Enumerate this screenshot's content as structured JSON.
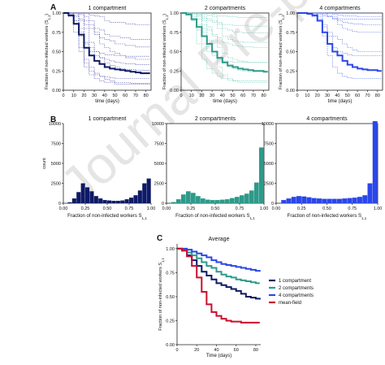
{
  "panel_letters": [
    "A",
    "B",
    "C"
  ],
  "colors": {
    "c1": "#0d1a66",
    "c2": "#2e9a8a",
    "c4": "#2a47e8",
    "mf": "#c8102e",
    "c1_light": "#3a3aa8",
    "c2_light": "#4fc1aa",
    "c4_light": "#3a56f0"
  },
  "watermark": "Journal Pre-proofs",
  "chart_data": [
    {
      "id": "A1",
      "type": "line",
      "title": "1 compartment",
      "xlabel": "time (days)",
      "ylabel": "Fraction of non-infected workers (S1,1)",
      "xlim": [
        0,
        85
      ],
      "ylim": [
        0,
        1
      ],
      "xticks": [
        "0",
        "10",
        "20",
        "30",
        "40",
        "50",
        "60",
        "70",
        "80"
      ],
      "yticks": [
        "0.00",
        "0.25",
        "0.50",
        "0.75",
        "1.00"
      ],
      "color_key": "c1",
      "mean": {
        "x": [
          0,
          5,
          10,
          15,
          20,
          25,
          30,
          35,
          40,
          45,
          50,
          55,
          60,
          65,
          70,
          75,
          80,
          84
        ],
        "y": [
          1.0,
          0.97,
          0.86,
          0.72,
          0.55,
          0.45,
          0.38,
          0.34,
          0.3,
          0.28,
          0.27,
          0.26,
          0.25,
          0.24,
          0.23,
          0.22,
          0.22,
          0.22
        ]
      },
      "runs": [
        [
          1,
          1,
          0.95,
          0.7,
          0.4,
          0.3,
          0.22,
          0.18,
          0.14,
          0.12,
          0.1,
          0.1,
          0.1,
          0.09,
          0.09,
          0.09,
          0.09,
          0.09
        ],
        [
          1,
          1,
          1,
          1,
          0.9,
          0.85,
          0.8,
          0.78,
          0.72,
          0.7,
          0.7,
          0.68,
          0.68,
          0.66,
          0.66,
          0.66,
          0.66,
          0.66
        ],
        [
          1,
          0.95,
          0.75,
          0.5,
          0.3,
          0.2,
          0.15,
          0.12,
          0.1,
          0.1,
          0.08,
          0.08,
          0.08,
          0.08,
          0.08,
          0.08,
          0.08,
          0.08
        ],
        [
          1,
          1,
          1,
          0.98,
          0.95,
          0.9,
          0.75,
          0.6,
          0.55,
          0.5,
          0.48,
          0.45,
          0.42,
          0.42,
          0.4,
          0.4,
          0.4,
          0.4
        ],
        [
          1,
          1,
          0.9,
          0.8,
          0.6,
          0.5,
          0.45,
          0.42,
          0.4,
          0.38,
          0.36,
          0.35,
          0.34,
          0.34,
          0.33,
          0.33,
          0.33,
          0.33
        ],
        [
          1,
          1,
          1,
          1,
          1,
          0.97,
          0.96,
          0.95,
          0.9,
          0.88,
          0.88,
          0.88,
          0.86,
          0.86,
          0.85,
          0.85,
          0.85,
          0.85
        ],
        [
          1,
          0.98,
          0.85,
          0.55,
          0.35,
          0.25,
          0.2,
          0.18,
          0.17,
          0.16,
          0.15,
          0.15,
          0.15,
          0.15,
          0.15,
          0.15,
          0.15,
          0.15
        ],
        [
          1,
          1,
          1,
          0.92,
          0.8,
          0.62,
          0.5,
          0.42,
          0.35,
          0.32,
          0.3,
          0.28,
          0.27,
          0.27,
          0.26,
          0.26,
          0.26,
          0.26
        ],
        [
          1,
          1,
          0.97,
          0.9,
          0.85,
          0.8,
          0.72,
          0.68,
          0.66,
          0.64,
          0.6,
          0.6,
          0.58,
          0.58,
          0.56,
          0.56,
          0.56,
          0.56
        ],
        [
          1,
          1,
          0.9,
          0.75,
          0.62,
          0.55,
          0.5,
          0.48,
          0.46,
          0.46,
          0.45,
          0.45,
          0.44,
          0.44,
          0.44,
          0.44,
          0.44,
          0.44
        ]
      ]
    },
    {
      "id": "A2",
      "type": "line",
      "title": "2 compartments",
      "xlabel": "time (days)",
      "ylabel": "Fraction of non-infected workers (S1,1)",
      "xlim": [
        0,
        85
      ],
      "ylim": [
        0,
        1
      ],
      "xticks": [
        "0",
        "10",
        "20",
        "30",
        "40",
        "50",
        "60",
        "70",
        "80"
      ],
      "yticks": [
        "0.00",
        "0.25",
        "0.50",
        "0.75",
        "1.00"
      ],
      "color_key": "c2",
      "mean": {
        "x": [
          0,
          5,
          10,
          15,
          20,
          25,
          30,
          35,
          40,
          45,
          50,
          55,
          60,
          65,
          70,
          75,
          80,
          84
        ],
        "y": [
          1.0,
          0.98,
          0.92,
          0.82,
          0.7,
          0.6,
          0.5,
          0.42,
          0.36,
          0.32,
          0.3,
          0.28,
          0.27,
          0.26,
          0.25,
          0.25,
          0.24,
          0.24
        ]
      },
      "runs": [
        [
          1,
          1,
          1,
          1,
          0.95,
          0.92,
          0.9,
          0.88,
          0.85,
          0.85,
          0.84,
          0.84,
          0.84,
          0.83,
          0.83,
          0.83,
          0.83,
          0.83
        ],
        [
          1,
          1,
          0.9,
          0.6,
          0.4,
          0.28,
          0.22,
          0.18,
          0.15,
          0.13,
          0.12,
          0.12,
          0.12,
          0.12,
          0.12,
          0.12,
          0.12,
          0.12
        ],
        [
          1,
          1,
          1,
          0.95,
          0.8,
          0.65,
          0.5,
          0.4,
          0.35,
          0.3,
          0.28,
          0.26,
          0.25,
          0.24,
          0.24,
          0.24,
          0.24,
          0.24
        ],
        [
          1,
          1,
          1,
          1,
          1,
          1,
          0.98,
          0.96,
          0.96,
          0.95,
          0.95,
          0.94,
          0.94,
          0.94,
          0.94,
          0.94,
          0.94,
          0.94
        ],
        [
          1,
          0.98,
          0.9,
          0.78,
          0.6,
          0.5,
          0.45,
          0.4,
          0.38,
          0.37,
          0.36,
          0.36,
          0.36,
          0.36,
          0.36,
          0.36,
          0.36,
          0.36
        ],
        [
          1,
          1,
          1,
          0.98,
          0.9,
          0.82,
          0.72,
          0.68,
          0.62,
          0.6,
          0.58,
          0.57,
          0.56,
          0.56,
          0.55,
          0.55,
          0.55,
          0.55
        ],
        [
          1,
          1,
          0.95,
          0.85,
          0.75,
          0.62,
          0.45,
          0.3,
          0.2,
          0.15,
          0.12,
          0.1,
          0.1,
          0.1,
          0.1,
          0.1,
          0.1,
          0.1
        ],
        [
          1,
          1,
          1,
          1,
          0.98,
          0.97,
          0.95,
          0.8,
          0.7,
          0.66,
          0.64,
          0.63,
          0.62,
          0.62,
          0.62,
          0.62,
          0.62,
          0.62
        ],
        [
          1,
          1,
          0.98,
          0.92,
          0.85,
          0.78,
          0.7,
          0.55,
          0.48,
          0.42,
          0.4,
          0.38,
          0.37,
          0.36,
          0.36,
          0.36,
          0.36,
          0.36
        ],
        [
          1,
          1,
          1,
          0.97,
          0.93,
          0.9,
          0.88,
          0.86,
          0.8,
          0.78,
          0.75,
          0.75,
          0.74,
          0.74,
          0.74,
          0.74,
          0.74,
          0.74
        ]
      ]
    },
    {
      "id": "A3",
      "type": "line",
      "title": "4 compartments",
      "xlabel": "time (days)",
      "ylabel": "Fraction of non-infected workers (S1,1)",
      "xlim": [
        0,
        85
      ],
      "ylim": [
        0,
        1
      ],
      "xticks": [
        "0",
        "10",
        "20",
        "30",
        "40",
        "50",
        "60",
        "70",
        "80"
      ],
      "yticks": [
        "0.00",
        "0.25",
        "0.50",
        "0.75",
        "1.00"
      ],
      "color_key": "c4",
      "mean": {
        "x": [
          0,
          5,
          10,
          15,
          20,
          25,
          30,
          35,
          40,
          45,
          50,
          55,
          60,
          65,
          70,
          75,
          80,
          84
        ],
        "y": [
          1.0,
          1.0,
          0.99,
          0.97,
          0.9,
          0.75,
          0.6,
          0.5,
          0.45,
          0.38,
          0.33,
          0.3,
          0.28,
          0.27,
          0.26,
          0.26,
          0.25,
          0.25
        ]
      },
      "runs": [
        [
          1,
          1,
          1,
          1,
          1,
          1,
          1,
          1,
          1,
          1,
          1,
          1,
          1,
          1,
          1,
          1,
          1,
          1
        ],
        [
          1,
          1,
          1,
          1,
          0.98,
          0.96,
          0.95,
          0.93,
          0.92,
          0.92,
          0.92,
          0.92,
          0.92,
          0.92,
          0.92,
          0.92,
          0.92,
          0.92
        ],
        [
          1,
          1,
          1,
          1,
          0.95,
          0.85,
          0.7,
          0.55,
          0.5,
          0.48,
          0.46,
          0.45,
          0.45,
          0.45,
          0.45,
          0.45,
          0.45,
          0.45
        ],
        [
          1,
          1,
          1,
          1,
          1,
          1,
          0.96,
          0.95,
          0.9,
          0.88,
          0.87,
          0.86,
          0.86,
          0.85,
          0.85,
          0.85,
          0.85,
          0.85
        ],
        [
          1,
          1,
          1,
          0.98,
          0.92,
          0.7,
          0.45,
          0.3,
          0.22,
          0.18,
          0.16,
          0.15,
          0.15,
          0.15,
          0.15,
          0.15,
          0.15,
          0.15
        ],
        [
          1,
          1,
          1,
          1,
          1,
          0.98,
          0.95,
          0.92,
          0.85,
          0.8,
          0.78,
          0.76,
          0.75,
          0.75,
          0.75,
          0.75,
          0.75,
          0.75
        ],
        [
          1,
          1,
          1,
          1,
          1,
          1,
          1,
          0.98,
          0.97,
          0.96,
          0.96,
          0.96,
          0.95,
          0.95,
          0.95,
          0.95,
          0.95,
          0.95
        ],
        [
          1,
          1,
          1,
          0.95,
          0.9,
          0.82,
          0.75,
          0.7,
          0.66,
          0.6,
          0.55,
          0.52,
          0.5,
          0.5,
          0.5,
          0.5,
          0.5,
          0.5
        ]
      ]
    },
    {
      "id": "B1",
      "type": "bar",
      "title": "1 compartment",
      "xlabel": "Fraction of non-infected workers  S1,1",
      "ylabel": "count",
      "xlim": [
        0,
        1
      ],
      "ylim": [
        0,
        10000
      ],
      "xticks": [
        "0.00",
        "0.25",
        "0.50",
        "0.75",
        "1.00"
      ],
      "yticks": [
        "0",
        "2500",
        "5000",
        "7500",
        "10000"
      ],
      "color_key": "c1",
      "bin_width": 0.05,
      "bin_left": [
        0.0,
        0.05,
        0.1,
        0.15,
        0.2,
        0.25,
        0.3,
        0.35,
        0.4,
        0.45,
        0.5,
        0.55,
        0.6,
        0.65,
        0.7,
        0.75,
        0.8,
        0.85,
        0.9,
        0.95
      ],
      "values": [
        0,
        120,
        600,
        1400,
        2500,
        2000,
        1500,
        900,
        600,
        400,
        350,
        300,
        300,
        350,
        500,
        700,
        1000,
        1600,
        2500,
        3100
      ]
    },
    {
      "id": "B2",
      "type": "bar",
      "title": "2 compartments",
      "xlabel": "Fraction of non-infected workers  S1,1",
      "ylabel": "count",
      "xlim": [
        0,
        1
      ],
      "ylim": [
        0,
        10000
      ],
      "xticks": [
        "0.00",
        "0.25",
        "0.50",
        "0.75",
        "1.00"
      ],
      "yticks": [
        "0",
        "2500",
        "5000",
        "7500",
        "10000"
      ],
      "color_key": "c2",
      "bin_width": 0.05,
      "bin_left": [
        0.0,
        0.05,
        0.1,
        0.15,
        0.2,
        0.25,
        0.3,
        0.35,
        0.4,
        0.45,
        0.5,
        0.55,
        0.6,
        0.65,
        0.7,
        0.75,
        0.8,
        0.85,
        0.9,
        0.95
      ],
      "values": [
        0,
        150,
        500,
        1100,
        1500,
        1300,
        900,
        600,
        450,
        400,
        400,
        450,
        500,
        650,
        800,
        1000,
        1200,
        1600,
        2600,
        7000
      ]
    },
    {
      "id": "B3",
      "type": "bar",
      "title": "4 compartments",
      "xlabel": "Fraction of non-infected workers  S1,1",
      "ylabel": "count",
      "xlim": [
        0,
        1
      ],
      "ylim": [
        0,
        10000
      ],
      "xticks": [
        "0.00",
        "0.25",
        "0.50",
        "0.75",
        "1.00"
      ],
      "yticks": [
        "0",
        "2500",
        "5000",
        "7500",
        "10000"
      ],
      "color_key": "c4",
      "bin_width": 0.05,
      "bin_left": [
        0.0,
        0.05,
        0.1,
        0.15,
        0.2,
        0.25,
        0.3,
        0.35,
        0.4,
        0.45,
        0.5,
        0.55,
        0.6,
        0.65,
        0.7,
        0.75,
        0.8,
        0.85,
        0.9,
        0.95
      ],
      "values": [
        0,
        400,
        600,
        800,
        900,
        850,
        750,
        650,
        600,
        550,
        550,
        550,
        550,
        600,
        650,
        700,
        800,
        1000,
        2500,
        10300
      ]
    },
    {
      "id": "C",
      "type": "line",
      "title": "Average",
      "xlabel": "Time (days)",
      "ylabel": "Fraction of non-infected workers S1,1",
      "xlim": [
        0,
        85
      ],
      "ylim": [
        0,
        1.05
      ],
      "xticks": [
        "0",
        "20",
        "40",
        "60",
        "80"
      ],
      "yticks": [
        "0.00",
        "0.25",
        "0.50",
        "0.75",
        "1.00"
      ],
      "legend_position": "right",
      "x": [
        0,
        5,
        10,
        15,
        20,
        25,
        30,
        35,
        40,
        45,
        50,
        55,
        60,
        65,
        70,
        75,
        80,
        84
      ],
      "series": [
        {
          "name": "1 compartment",
          "color_key": "c1",
          "values": [
            1.0,
            0.98,
            0.93,
            0.88,
            0.82,
            0.76,
            0.72,
            0.68,
            0.64,
            0.62,
            0.6,
            0.58,
            0.56,
            0.53,
            0.5,
            0.49,
            0.48,
            0.47
          ]
        },
        {
          "name": "2 compartments",
          "color_key": "c2",
          "values": [
            1.0,
            0.99,
            0.96,
            0.93,
            0.9,
            0.86,
            0.82,
            0.8,
            0.76,
            0.73,
            0.71,
            0.7,
            0.68,
            0.67,
            0.66,
            0.65,
            0.64,
            0.64
          ]
        },
        {
          "name": "4 compartments",
          "color_key": "c4",
          "values": [
            1.0,
            1.0,
            0.99,
            0.97,
            0.95,
            0.93,
            0.91,
            0.88,
            0.86,
            0.84,
            0.83,
            0.82,
            0.81,
            0.8,
            0.79,
            0.78,
            0.77,
            0.76
          ]
        },
        {
          "name": "mean-field",
          "color_key": "mf",
          "values": [
            1.0,
            0.98,
            0.92,
            0.82,
            0.7,
            0.55,
            0.42,
            0.34,
            0.3,
            0.27,
            0.25,
            0.24,
            0.24,
            0.23,
            0.23,
            0.23,
            0.23,
            0.23
          ]
        }
      ]
    }
  ]
}
